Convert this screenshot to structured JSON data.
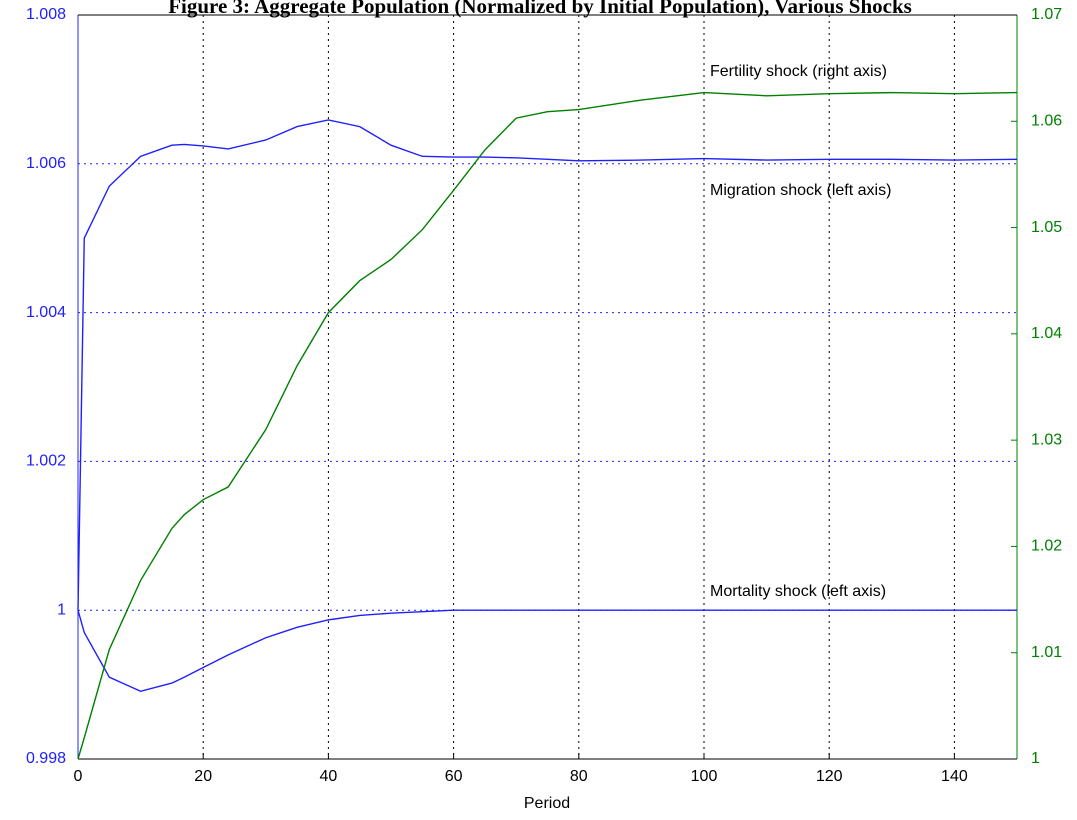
{
  "chart_data": {
    "type": "line",
    "title": "Figure 3: Aggregate Population (Normalized by Initial Population), Various Shocks",
    "x_label": "Period",
    "x": [
      0,
      1,
      5,
      10,
      15,
      17,
      20,
      24,
      30,
      35,
      40,
      45,
      50,
      55,
      60,
      65,
      70,
      75,
      80,
      90,
      100,
      110,
      120,
      130,
      140,
      150
    ],
    "xlim": [
      0,
      150
    ],
    "xticks": [
      0,
      20,
      40,
      60,
      80,
      100,
      120,
      140
    ],
    "ylim": [
      0.998,
      1.008
    ],
    "yticks": [
      0.998,
      1,
      1.002,
      1.004,
      1.006,
      1.008
    ],
    "y2lim": [
      1,
      1.07
    ],
    "y2ticks": [
      1,
      1.01,
      1.02,
      1.03,
      1.04,
      1.05,
      1.06,
      1.07
    ],
    "y_color": "#2020ff",
    "y2_color": "#008000",
    "grid": true,
    "series": [
      {
        "name": "Migration shock (left axis)",
        "color": "#2020ff",
        "axis": "y",
        "values": [
          1,
          1.005,
          1.0057,
          1.0061,
          1.00625,
          1.00626,
          1.00624,
          1.0062,
          1.00632,
          1.0065,
          1.00659,
          1.0065,
          1.00625,
          1.0061,
          1.00609,
          1.00609,
          1.00608,
          1.00606,
          1.00604,
          1.00605,
          1.00607,
          1.00605,
          1.00606,
          1.00606,
          1.00605,
          1.00606
        ]
      },
      {
        "name": "Mortality shock (left axis)",
        "color": "#2020ff",
        "axis": "y",
        "values": [
          1,
          0.9997,
          0.9991,
          0.99891,
          0.99902,
          0.9991,
          0.99923,
          0.9994,
          0.99963,
          0.99977,
          0.99987,
          0.99993,
          0.99996,
          0.99998,
          1,
          1,
          1,
          1,
          1,
          1,
          1,
          1,
          1,
          1,
          1,
          1
        ]
      },
      {
        "name": "Fertility shock (right axis)",
        "color": "#008000",
        "axis": "y2",
        "values": [
          1,
          1.002,
          1.0103,
          1.0168,
          1.0217,
          1.023,
          1.0244,
          1.0256,
          1.031,
          1.037,
          1.042,
          1.045,
          1.047,
          1.0498,
          1.0535,
          1.0573,
          1.0603,
          1.0609,
          1.0611,
          1.062,
          1.0627,
          1.0624,
          1.0626,
          1.0627,
          1.0626,
          1.0627
        ]
      }
    ]
  }
}
